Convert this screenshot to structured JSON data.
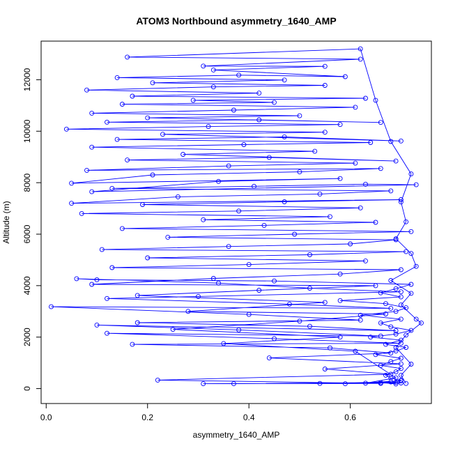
{
  "chart_data": {
    "type": "line",
    "title": "ATOM3 Northbound asymmetry_1640_AMP",
    "xlabel": "asymmetry_1640_AMP",
    "ylabel": "Altitude (m)",
    "xlim": [
      -0.01,
      0.76
    ],
    "ylim": [
      -580,
      13500
    ],
    "x_ticks": [
      0.0,
      0.2,
      0.4,
      0.6
    ],
    "x_tick_labels": [
      "0.0",
      "0.2",
      "0.4",
      "0.6"
    ],
    "y_ticks": [
      0,
      2000,
      4000,
      6000,
      8000,
      10000,
      12000
    ],
    "y_tick_labels": [
      "0",
      "2000",
      "4000",
      "6000",
      "8000",
      "10000",
      "12000"
    ],
    "grid": false,
    "legend": "none",
    "series": [
      {
        "color": "#0000ff",
        "marker": "open-circle",
        "points": [
          [
            0.69,
            180
          ],
          [
            0.66,
            230
          ],
          [
            0.7,
            320
          ],
          [
            0.68,
            410
          ],
          [
            0.67,
            520
          ],
          [
            0.69,
            650
          ],
          [
            0.7,
            780
          ],
          [
            0.66,
            900
          ],
          [
            0.68,
            1050
          ],
          [
            0.7,
            1180
          ],
          [
            0.65,
            1320
          ],
          [
            0.69,
            1460
          ],
          [
            0.71,
            1600
          ],
          [
            0.67,
            1720
          ],
          [
            0.7,
            1880
          ],
          [
            0.64,
            2000
          ],
          [
            0.69,
            2120
          ],
          [
            0.72,
            2260
          ],
          [
            0.68,
            2400
          ],
          [
            0.66,
            2550
          ],
          [
            0.7,
            2700
          ],
          [
            0.62,
            2850
          ],
          [
            0.69,
            3000
          ],
          [
            0.71,
            3140
          ],
          [
            0.67,
            3300
          ],
          [
            0.58,
            3420
          ],
          [
            0.7,
            3560
          ],
          [
            0.66,
            3720
          ],
          [
            0.69,
            3880
          ],
          [
            0.72,
            4050
          ],
          [
            0.45,
            4180
          ],
          [
            0.1,
            4230
          ],
          [
            0.06,
            4270
          ],
          [
            0.34,
            4100
          ],
          [
            0.52,
            3900
          ],
          [
            0.7,
            3760
          ],
          [
            0.3,
            3580
          ],
          [
            0.12,
            3500
          ],
          [
            0.48,
            3280
          ],
          [
            0.68,
            3120
          ],
          [
            0.01,
            3180
          ],
          [
            0.4,
            2880
          ],
          [
            0.62,
            2660
          ],
          [
            0.18,
            2560
          ],
          [
            0.52,
            2420
          ],
          [
            0.69,
            2250
          ],
          [
            0.1,
            2470
          ],
          [
            0.38,
            2280
          ],
          [
            0.66,
            2040
          ],
          [
            0.12,
            2150
          ],
          [
            0.45,
            1940
          ],
          [
            0.7,
            1760
          ],
          [
            0.17,
            1720
          ],
          [
            0.56,
            1580
          ],
          [
            0.68,
            1380
          ],
          [
            0.44,
            1190
          ],
          [
            0.7,
            960
          ],
          [
            0.55,
            760
          ],
          [
            0.68,
            560
          ],
          [
            0.22,
            330
          ],
          [
            0.66,
            200
          ],
          [
            0.31,
            190
          ],
          [
            0.7,
            220
          ],
          [
            0.37,
            190
          ],
          [
            0.69,
            240
          ],
          [
            0.54,
            200
          ],
          [
            0.68,
            260
          ],
          [
            0.59,
            190
          ],
          [
            0.7,
            300
          ],
          [
            0.63,
            210
          ],
          [
            0.69,
            420
          ],
          [
            0.61,
            1450
          ],
          [
            0.35,
            1750
          ],
          [
            0.58,
            2000
          ],
          [
            0.25,
            2300
          ],
          [
            0.5,
            2620
          ],
          [
            0.67,
            2900
          ],
          [
            0.28,
            3000
          ],
          [
            0.55,
            3350
          ],
          [
            0.18,
            3620
          ],
          [
            0.42,
            3820
          ],
          [
            0.65,
            4000
          ],
          [
            0.09,
            4050
          ],
          [
            0.33,
            4280
          ],
          [
            0.58,
            4450
          ],
          [
            0.7,
            4620
          ],
          [
            0.13,
            4700
          ],
          [
            0.4,
            4820
          ],
          [
            0.63,
            4960
          ],
          [
            0.2,
            5080
          ],
          [
            0.52,
            5200
          ],
          [
            0.71,
            5320
          ],
          [
            0.11,
            5400
          ],
          [
            0.36,
            5520
          ],
          [
            0.6,
            5620
          ],
          [
            0.69,
            5780
          ],
          [
            0.24,
            5880
          ],
          [
            0.49,
            6000
          ],
          [
            0.72,
            6100
          ],
          [
            0.15,
            6220
          ],
          [
            0.43,
            6340
          ],
          [
            0.65,
            6460
          ],
          [
            0.31,
            6560
          ],
          [
            0.56,
            6680
          ],
          [
            0.07,
            6800
          ],
          [
            0.38,
            6900
          ],
          [
            0.62,
            7020
          ],
          [
            0.19,
            7150
          ],
          [
            0.47,
            7260
          ],
          [
            0.7,
            7340
          ],
          [
            0.05,
            7200
          ],
          [
            0.26,
            7450
          ],
          [
            0.54,
            7560
          ],
          [
            0.68,
            7680
          ],
          [
            0.13,
            7780
          ],
          [
            0.41,
            7860
          ],
          [
            0.63,
            7940
          ],
          [
            0.73,
            7920
          ],
          [
            0.09,
            7650
          ],
          [
            0.34,
            8050
          ],
          [
            0.58,
            8160
          ],
          [
            0.05,
            7980
          ],
          [
            0.21,
            8300
          ],
          [
            0.5,
            8420
          ],
          [
            0.66,
            8550
          ],
          [
            0.08,
            8480
          ],
          [
            0.36,
            8650
          ],
          [
            0.61,
            8760
          ],
          [
            0.16,
            8880
          ],
          [
            0.44,
            8980
          ],
          [
            0.69,
            8840
          ],
          [
            0.27,
            9100
          ],
          [
            0.53,
            9220
          ],
          [
            0.09,
            9380
          ],
          [
            0.39,
            9480
          ],
          [
            0.64,
            9560
          ],
          [
            0.14,
            9680
          ],
          [
            0.47,
            9780
          ],
          [
            0.7,
            9620
          ],
          [
            0.23,
            9880
          ],
          [
            0.55,
            9960
          ],
          [
            0.04,
            10080
          ],
          [
            0.32,
            10180
          ],
          [
            0.58,
            10260
          ],
          [
            0.12,
            10350
          ],
          [
            0.42,
            10440
          ],
          [
            0.66,
            10340
          ],
          [
            0.2,
            10520
          ],
          [
            0.5,
            10600
          ],
          [
            0.09,
            10700
          ],
          [
            0.37,
            10820
          ],
          [
            0.61,
            10930
          ],
          [
            0.15,
            11050
          ],
          [
            0.45,
            11120
          ],
          [
            0.29,
            11200
          ],
          [
            0.63,
            11280
          ],
          [
            0.17,
            11360
          ],
          [
            0.42,
            11480
          ],
          [
            0.08,
            11600
          ],
          [
            0.33,
            11720
          ],
          [
            0.55,
            11780
          ],
          [
            0.21,
            11880
          ],
          [
            0.47,
            11990
          ],
          [
            0.14,
            12080
          ],
          [
            0.38,
            12180
          ],
          [
            0.59,
            12120
          ],
          [
            0.33,
            12380
          ],
          [
            0.55,
            12520
          ],
          [
            0.31,
            12530
          ],
          [
            0.62,
            12800
          ],
          [
            0.16,
            12880
          ],
          [
            0.62,
            13200
          ],
          [
            0.65,
            11200
          ],
          [
            0.68,
            9600
          ],
          [
            0.72,
            8340
          ],
          [
            0.7,
            7250
          ],
          [
            0.71,
            6480
          ],
          [
            0.69,
            5820
          ],
          [
            0.72,
            5250
          ],
          [
            0.73,
            4750
          ],
          [
            0.68,
            4200
          ],
          [
            0.72,
            3700
          ],
          [
            0.7,
            3250
          ],
          [
            0.73,
            2700
          ],
          [
            0.74,
            2550
          ],
          [
            0.71,
            2080
          ],
          [
            0.69,
            1600
          ],
          [
            0.72,
            950
          ],
          [
            0.7,
            520
          ],
          [
            0.71,
            200
          ]
        ]
      }
    ]
  }
}
